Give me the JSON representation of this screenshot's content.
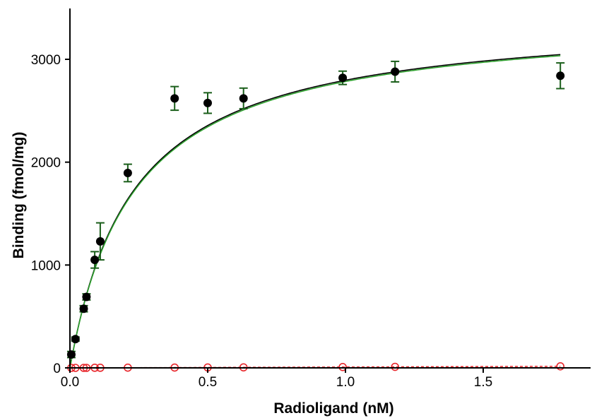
{
  "chart_data": {
    "type": "scatter",
    "title": "",
    "xlabel": "Radioligand (nM)",
    "ylabel": "Binding (fmol/mg)",
    "xlim": [
      0,
      1.88
    ],
    "ylim": [
      0,
      3500
    ],
    "x_ticks": [
      0.0,
      0.5,
      1.0,
      1.5
    ],
    "x_tick_labels": [
      "0.0",
      "0.5",
      "1.0",
      "1.5"
    ],
    "y_ticks": [
      0,
      1000,
      2000,
      3000
    ],
    "y_tick_labels": [
      "0",
      "1000",
      "2000",
      "3000"
    ],
    "grid": false,
    "legend": "none",
    "series": [
      {
        "kind": "points-with-error",
        "color": "#000000",
        "error_color": "#1a5e1a",
        "marker": "filled-circle",
        "points": [
          {
            "x": 0.005,
            "y": 130,
            "err": 30
          },
          {
            "x": 0.02,
            "y": 280,
            "err": 20
          },
          {
            "x": 0.05,
            "y": 575,
            "err": 30
          },
          {
            "x": 0.06,
            "y": 690,
            "err": 30
          },
          {
            "x": 0.09,
            "y": 1050,
            "err": 80
          },
          {
            "x": 0.11,
            "y": 1230,
            "err": 180
          },
          {
            "x": 0.21,
            "y": 1895,
            "err": 85
          },
          {
            "x": 0.38,
            "y": 2620,
            "err": 115
          },
          {
            "x": 0.5,
            "y": 2575,
            "err": 100
          },
          {
            "x": 0.63,
            "y": 2620,
            "err": 100
          },
          {
            "x": 0.99,
            "y": 2820,
            "err": 65
          },
          {
            "x": 1.18,
            "y": 2880,
            "err": 100
          },
          {
            "x": 1.78,
            "y": 2840,
            "err": 125
          }
        ]
      },
      {
        "kind": "fit-curve",
        "color": "#000000",
        "model": "one-site",
        "bmax": 3440,
        "kd": 0.23
      },
      {
        "kind": "fit-curve",
        "color": "#2ca02c",
        "model": "one-site",
        "bmax": 3430,
        "kd": 0.232
      },
      {
        "kind": "points",
        "color": "#e8262b",
        "marker": "open-circle",
        "points": [
          {
            "x": 0.005,
            "y": 0
          },
          {
            "x": 0.02,
            "y": 0
          },
          {
            "x": 0.05,
            "y": 0
          },
          {
            "x": 0.06,
            "y": 0
          },
          {
            "x": 0.09,
            "y": 1
          },
          {
            "x": 0.11,
            "y": 1
          },
          {
            "x": 0.21,
            "y": 2
          },
          {
            "x": 0.38,
            "y": 3
          },
          {
            "x": 0.5,
            "y": 4
          },
          {
            "x": 0.63,
            "y": 5
          },
          {
            "x": 0.99,
            "y": 8
          },
          {
            "x": 1.18,
            "y": 10
          },
          {
            "x": 1.78,
            "y": 15
          }
        ]
      },
      {
        "kind": "fit-line-dashed",
        "color": "#e8262b",
        "slope": 8.5,
        "intercept": 0
      }
    ]
  }
}
